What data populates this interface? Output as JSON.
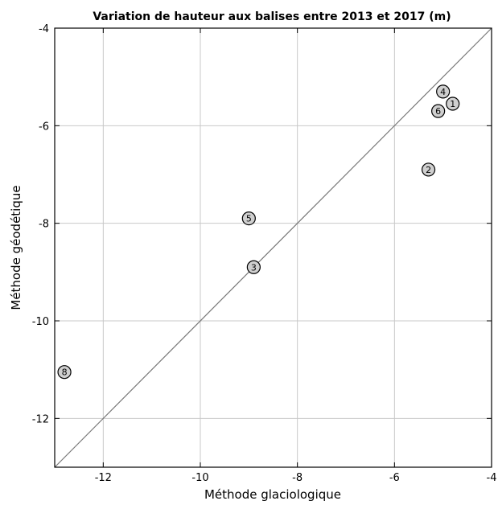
{
  "chart_data": {
    "type": "scatter",
    "title": "Variation de hauteur aux balises entre 2013 et 2017 (m)",
    "xlabel": "Méthode glaciologique",
    "ylabel": "Méthode géodétique",
    "xlim": [
      -13,
      -4
    ],
    "ylim": [
      -13,
      -4
    ],
    "xticks": [
      -12,
      -10,
      -8,
      -6,
      -4
    ],
    "yticks": [
      -12,
      -10,
      -8,
      -6,
      -4
    ],
    "grid": true,
    "reference_line": "y = x",
    "marker_color": "#cfcfcf",
    "points": [
      {
        "label": "1",
        "x": -4.8,
        "y": -5.55
      },
      {
        "label": "2",
        "x": -5.3,
        "y": -6.9
      },
      {
        "label": "3",
        "x": -8.9,
        "y": -8.9
      },
      {
        "label": "4",
        "x": -5.0,
        "y": -5.3
      },
      {
        "label": "5",
        "x": -9.0,
        "y": -7.9
      },
      {
        "label": "6",
        "x": -5.1,
        "y": -5.7
      },
      {
        "label": "8",
        "x": -12.8,
        "y": -11.05
      }
    ]
  }
}
